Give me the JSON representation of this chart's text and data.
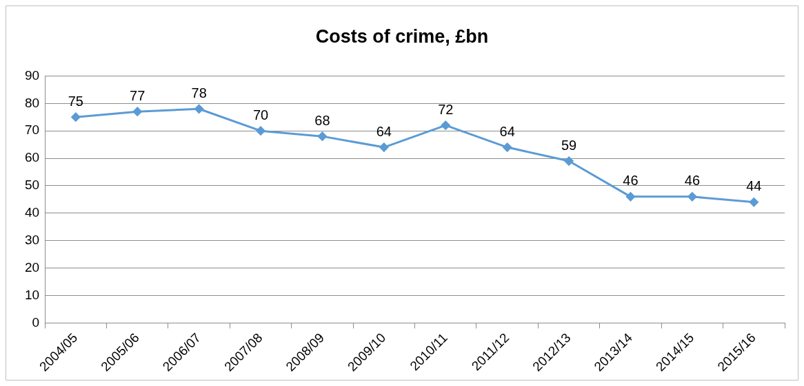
{
  "chart_data": {
    "type": "line",
    "title": "Costs of crime, £bn",
    "categories": [
      "2004/05",
      "2005/06",
      "2006/07",
      "2007/08",
      "2008/09",
      "2009/10",
      "2010/11",
      "2011/12",
      "2012/13",
      "2013/14",
      "2014/15",
      "2015/16"
    ],
    "values": [
      75,
      77,
      78,
      70,
      68,
      64,
      72,
      64,
      59,
      46,
      46,
      44
    ],
    "color": "#5b9bd5",
    "ylim": [
      0,
      90
    ],
    "yticks": [
      0,
      10,
      20,
      30,
      40,
      50,
      60,
      70,
      80,
      90
    ],
    "grid": "y",
    "legend": false,
    "marker": "diamond",
    "line_style": "solid",
    "data_labels": true
  }
}
